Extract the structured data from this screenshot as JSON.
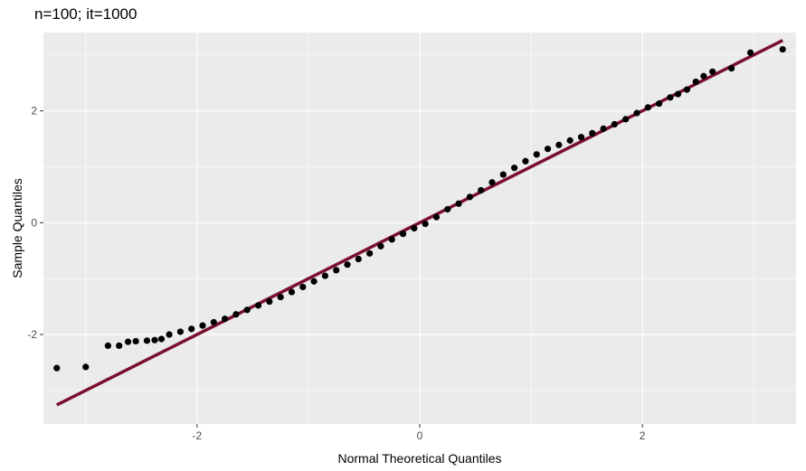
{
  "chart_data": {
    "type": "scatter",
    "title": "n=100; it=1000",
    "xlabel": "Normal Theoretical Quantiles",
    "ylabel": "Sample Quantiles",
    "xlim": [
      -3.38,
      3.38
    ],
    "ylim": [
      -3.6,
      3.4
    ],
    "x_ticks": [
      -2,
      0,
      2
    ],
    "y_ticks": [
      -2,
      0,
      2
    ],
    "x_tick_labels": [
      "-2",
      "0",
      "2"
    ],
    "y_tick_labels": [
      "-2",
      "0",
      "2"
    ],
    "grid": true,
    "background_color": "#ebebeb",
    "grid_color": "#ffffff",
    "point_color": "#000000",
    "reference_line": {
      "intercept": 0.0,
      "slope": 1.0,
      "color": "#7b0f2e"
    },
    "series": [
      {
        "x": [
          -3.26,
          -3.0,
          -2.8,
          -2.7,
          -2.62,
          -2.55,
          -2.45,
          -2.38,
          -2.32,
          -2.25,
          -2.15,
          -2.05,
          -1.95,
          -1.85,
          -1.75,
          -1.65,
          -1.55,
          -1.45,
          -1.35,
          -1.25,
          -1.15,
          -1.05,
          -0.95,
          -0.85,
          -0.75,
          -0.65,
          -0.55,
          -0.45,
          -0.35,
          -0.25,
          -0.15,
          -0.05,
          0.05,
          0.15,
          0.25,
          0.35,
          0.45,
          0.55,
          0.65,
          0.75,
          0.85,
          0.95,
          1.05,
          1.15,
          1.25,
          1.35,
          1.45,
          1.55,
          1.65,
          1.75,
          1.85,
          1.95,
          2.05,
          2.15,
          2.25,
          2.32,
          2.4,
          2.48,
          2.55,
          2.63,
          2.8,
          2.97,
          3.26
        ],
        "y": [
          -2.6,
          -2.58,
          -2.2,
          -2.2,
          -2.13,
          -2.12,
          -2.11,
          -2.1,
          -2.08,
          -2.0,
          -1.95,
          -1.9,
          -1.84,
          -1.78,
          -1.72,
          -1.64,
          -1.56,
          -1.48,
          -1.41,
          -1.33,
          -1.24,
          -1.15,
          -1.05,
          -0.95,
          -0.85,
          -0.75,
          -0.65,
          -0.55,
          -0.42,
          -0.3,
          -0.2,
          -0.1,
          -0.02,
          0.1,
          0.24,
          0.34,
          0.46,
          0.58,
          0.72,
          0.86,
          0.98,
          1.1,
          1.22,
          1.32,
          1.39,
          1.47,
          1.53,
          1.6,
          1.68,
          1.76,
          1.85,
          1.96,
          2.06,
          2.13,
          2.24,
          2.3,
          2.38,
          2.52,
          2.62,
          2.7,
          2.76,
          3.04,
          3.1
        ]
      }
    ]
  }
}
